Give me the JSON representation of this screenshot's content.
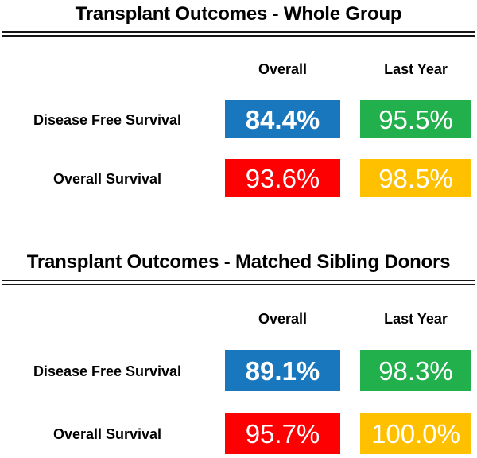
{
  "colors": {
    "blue": "#1877BD",
    "green": "#21B04C",
    "red": "#FD0002",
    "gold": "#FFC000",
    "rule": "#161616",
    "text": "#000000",
    "value_text": "#FFFFFF"
  },
  "sections": [
    {
      "title": "Transplant Outcomes - Whole Group",
      "columns": [
        "Overall",
        "Last Year"
      ],
      "rows": [
        {
          "label": "Disease Free Survival",
          "values": [
            {
              "text": "84.4%",
              "color": "blue"
            },
            {
              "text": "95.5%",
              "color": "green"
            }
          ]
        },
        {
          "label": "Overall Survival",
          "values": [
            {
              "text": "93.6%",
              "color": "red"
            },
            {
              "text": "98.5%",
              "color": "gold"
            }
          ]
        }
      ]
    },
    {
      "title": "Transplant Outcomes - Matched Sibling Donors",
      "columns": [
        "Overall",
        "Last Year"
      ],
      "rows": [
        {
          "label": "Disease Free Survival",
          "values": [
            {
              "text": "89.1%",
              "color": "blue"
            },
            {
              "text": "98.3%",
              "color": "green"
            }
          ]
        },
        {
          "label": "Overall Survival",
          "values": [
            {
              "text": "95.7%",
              "color": "red"
            },
            {
              "text": "100.0%",
              "color": "gold"
            }
          ]
        }
      ]
    }
  ],
  "chart_data": [
    {
      "type": "table",
      "title": "Transplant Outcomes - Whole Group",
      "columns": [
        "Overall",
        "Last Year"
      ],
      "rows": [
        {
          "label": "Disease Free Survival",
          "values": [
            84.4,
            95.5
          ]
        },
        {
          "label": "Overall Survival",
          "values": [
            93.6,
            98.5
          ]
        }
      ],
      "units": "%"
    },
    {
      "type": "table",
      "title": "Transplant Outcomes - Matched Sibling Donors",
      "columns": [
        "Overall",
        "Last Year"
      ],
      "rows": [
        {
          "label": "Disease Free Survival",
          "values": [
            89.1,
            98.3
          ]
        },
        {
          "label": "Overall Survival",
          "values": [
            95.7,
            100.0
          ]
        }
      ],
      "units": "%"
    }
  ]
}
